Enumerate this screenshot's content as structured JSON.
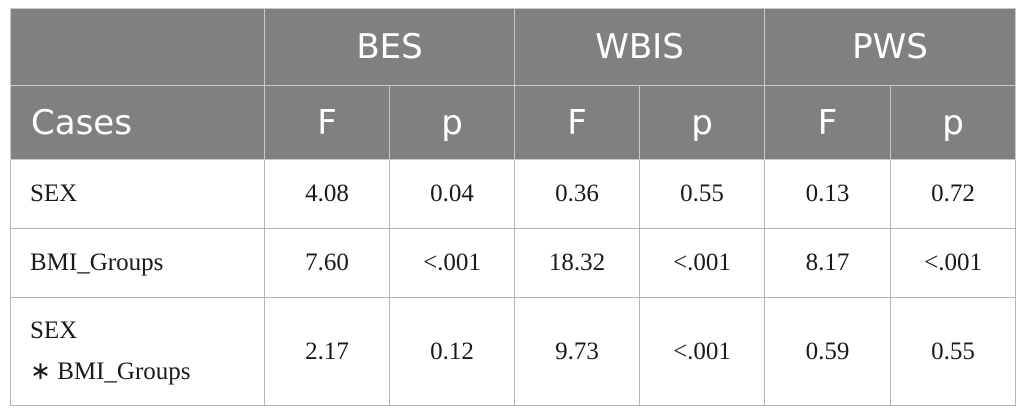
{
  "table": {
    "groups": [
      "BES",
      "WBIS",
      "PWS"
    ],
    "case_header": "Cases",
    "sub_headers": [
      "F",
      "p",
      "F",
      "p",
      "F",
      "p"
    ],
    "rows": [
      {
        "case": "SEX",
        "values": [
          "4.08",
          "0.04",
          "0.36",
          "0.55",
          "0.13",
          "0.72"
        ]
      },
      {
        "case": "BMI_Groups",
        "values": [
          "7.60",
          "<.001",
          "18.32",
          "<.001",
          "8.17",
          "<.001"
        ]
      },
      {
        "case_line1": "SEX",
        "case_star": "∗",
        "case_line2": " BMI_Groups",
        "values": [
          "2.17",
          "0.12",
          "9.73",
          "<.001",
          "0.59",
          "0.55"
        ]
      }
    ]
  }
}
